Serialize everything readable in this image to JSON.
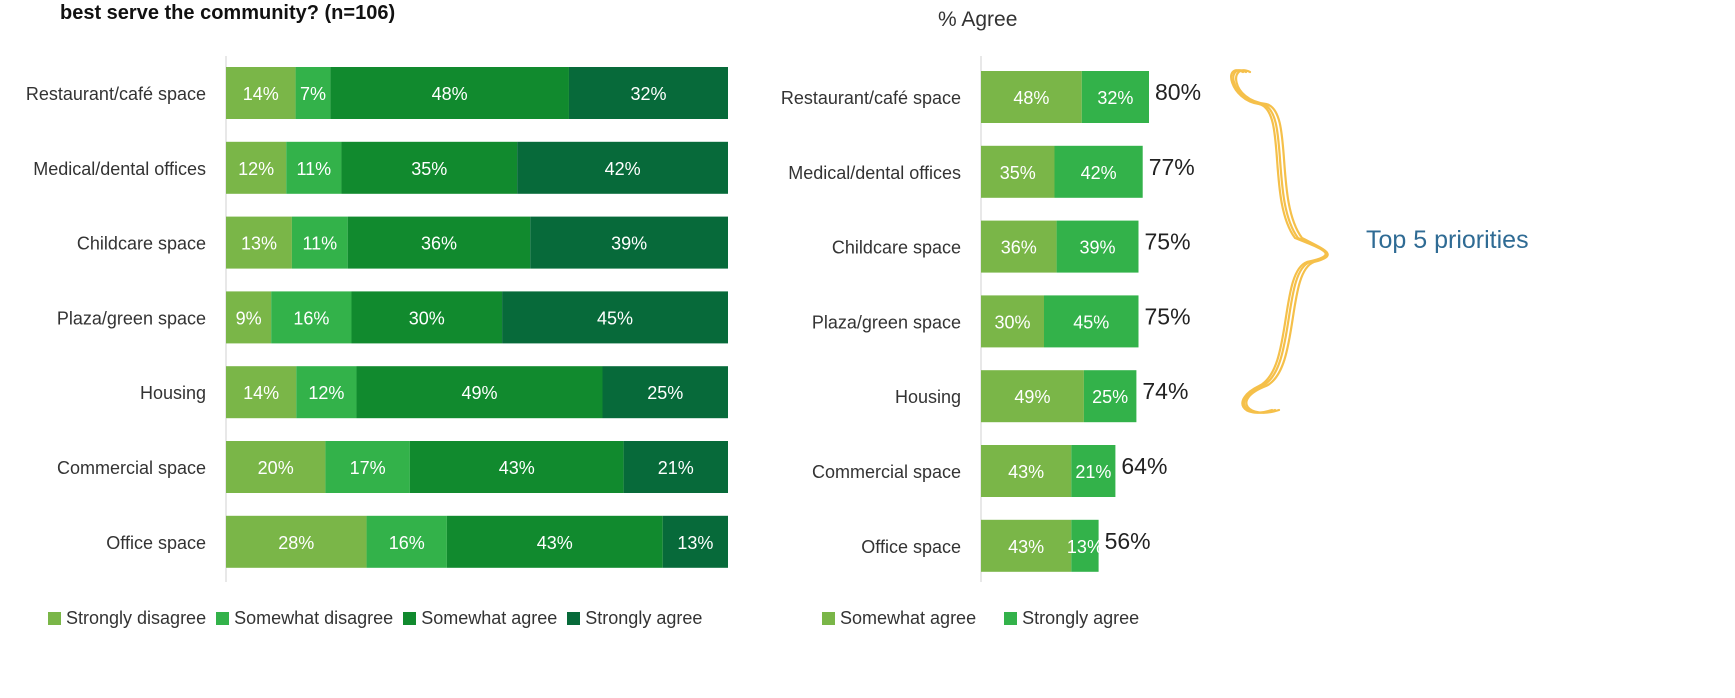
{
  "question_fragment": "best serve the community? (n=106)",
  "agree_title": "% Agree",
  "annotation": "Top 5 priorities",
  "colors": {
    "strongly_disagree": "#7ab648",
    "somewhat_disagree": "#33b24a",
    "somewhat_agree": "#118a2e",
    "strongly_agree": "#076a3a",
    "annotation_brace": "#f5c04a",
    "annotation_text": "#2f6b94"
  },
  "chart_data": [
    {
      "type": "bar",
      "orientation": "horizontal",
      "stacked": true,
      "categories": [
        "Restaurant/café space",
        "Medical/dental offices",
        "Childcare space",
        "Plaza/green space",
        "Housing",
        "Commercial space",
        "Office space"
      ],
      "series": [
        {
          "name": "Strongly disagree",
          "values": [
            14,
            12,
            13,
            9,
            14,
            20,
            28
          ],
          "labels": [
            "14%",
            "12%",
            "13%",
            "9%",
            "14%",
            "20%",
            "28%"
          ]
        },
        {
          "name": "Somewhat disagree",
          "values": [
            7,
            11,
            11,
            16,
            12,
            17,
            16
          ],
          "labels": [
            "7%",
            "11%",
            "11%",
            "16%",
            "12%",
            "17%",
            "16%"
          ]
        },
        {
          "name": "Somewhat agree",
          "values": [
            48,
            35,
            36,
            30,
            49,
            43,
            43
          ],
          "labels": [
            "48%",
            "35%",
            "36%",
            "30%",
            "49%",
            "43%",
            "43%"
          ]
        },
        {
          "name": "Strongly agree",
          "values": [
            32,
            42,
            39,
            45,
            25,
            21,
            13
          ],
          "labels": [
            "32%",
            "42%",
            "39%",
            "45%",
            "25%",
            "21%",
            "13%"
          ]
        }
      ]
    },
    {
      "type": "bar",
      "orientation": "horizontal",
      "stacked": true,
      "title": "% Agree",
      "categories": [
        "Restaurant/café space",
        "Medical/dental offices",
        "Childcare space",
        "Plaza/green space",
        "Housing",
        "Commercial space",
        "Office space"
      ],
      "series": [
        {
          "name": "Somewhat agree",
          "values": [
            48,
            35,
            36,
            30,
            49,
            43,
            43
          ],
          "labels": [
            "48%",
            "35%",
            "36%",
            "30%",
            "49%",
            "43%",
            "43%"
          ]
        },
        {
          "name": "Strongly agree",
          "values": [
            32,
            42,
            39,
            45,
            25,
            21,
            13
          ],
          "labels": [
            "32%",
            "42%",
            "39%",
            "45%",
            "25%",
            "21%",
            "13%"
          ]
        }
      ],
      "totals": [
        80,
        77,
        75,
        75,
        74,
        64,
        56
      ],
      "total_labels": [
        "80%",
        "77%",
        "75%",
        "75%",
        "74%",
        "64%",
        "56%"
      ]
    }
  ],
  "legend_left": [
    "Strongly disagree",
    "Somewhat disagree",
    "Somewhat agree",
    "Strongly agree"
  ],
  "legend_right": [
    "Somewhat agree",
    "Strongly agree"
  ]
}
